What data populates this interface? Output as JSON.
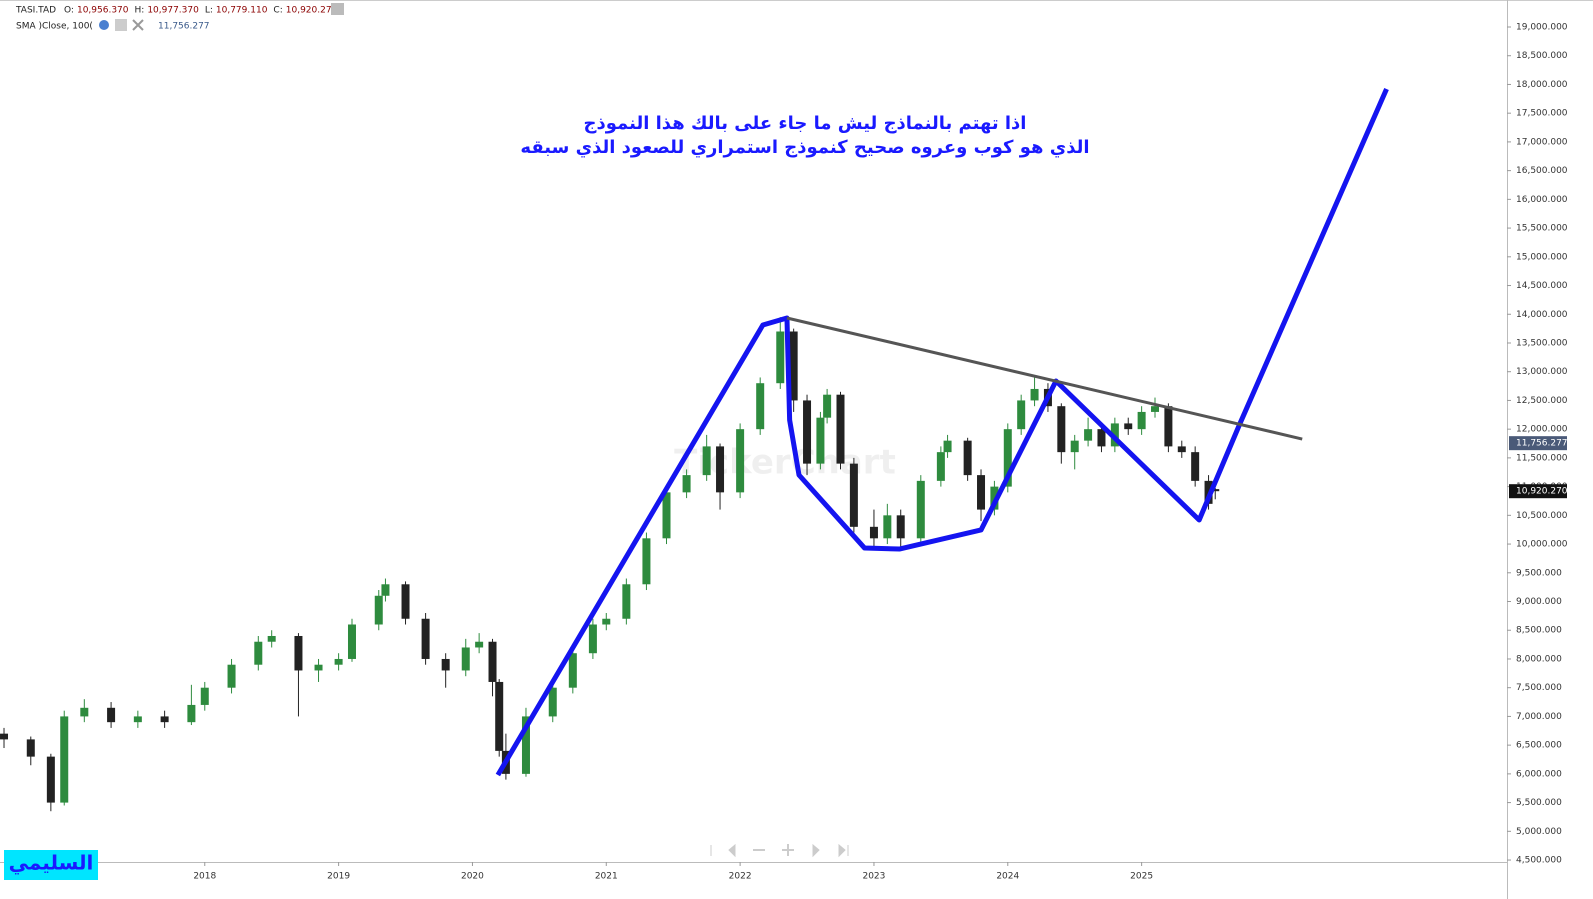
{
  "header": {
    "symbol": "TASI.TAD",
    "ohlc": [
      {
        "key": "O:",
        "value": "10,956.370"
      },
      {
        "key": "H:",
        "value": "10,977.370"
      },
      {
        "key": "L:",
        "value": "10,779.110"
      },
      {
        "key": "C:",
        "value": "10,920.270"
      }
    ],
    "indicator": "SMA  )Close, 100(",
    "indicator_value": "11,756.277"
  },
  "chart_data": {
    "type": "candlestick",
    "annotations": [
      "اذا تهتم بالنماذج ليش ما جاء على بالك هذا النموذج",
      "الذي هو كوب وعروه صحيح كنموذج استمراري  للصعود الذي سبقه"
    ],
    "watermark": "TickerChart",
    "signature": "السليمي",
    "up_color": "#2e8b3e",
    "down_color": "#222222",
    "x": [
      2016.5,
      2016.7,
      2016.85,
      2016.95,
      2017.1,
      2017.3,
      2017.5,
      2017.7,
      2017.9,
      2018.0,
      2018.2,
      2018.4,
      2018.5,
      2018.7,
      2018.85,
      2019.0,
      2019.1,
      2019.3,
      2019.35,
      2019.5,
      2019.65,
      2019.8,
      2019.95,
      2020.05,
      2020.15,
      2020.2,
      2020.25,
      2020.4,
      2020.6,
      2020.75,
      2020.9,
      2021.0,
      2021.15,
      2021.3,
      2021.45,
      2021.6,
      2021.75,
      2021.85,
      2022.0,
      2022.15,
      2022.3,
      2022.4,
      2022.5,
      2022.6,
      2022.65,
      2022.75,
      2022.85,
      2023.0,
      2023.1,
      2023.2,
      2023.35,
      2023.5,
      2023.55,
      2023.7,
      2023.8,
      2023.9,
      2024.0,
      2024.1,
      2024.2,
      2024.3,
      2024.4,
      2024.5,
      2024.6,
      2024.7,
      2024.8,
      2024.9,
      2025.0,
      2025.1,
      2025.2,
      2025.3,
      2025.4,
      2025.5,
      2025.55
    ],
    "open": [
      6700,
      6600,
      6300,
      5500,
      7000,
      7150,
      6900,
      7000,
      6900,
      7200,
      7500,
      7900,
      8300,
      8400,
      7800,
      7900,
      8000,
      8600,
      9100,
      9300,
      8700,
      8000,
      7800,
      8200,
      8300,
      7600,
      6400,
      6000,
      7000,
      7500,
      8100,
      8600,
      8700,
      9300,
      10100,
      10900,
      11200,
      11700,
      10900,
      12000,
      12800,
      13700,
      12500,
      11400,
      12200,
      12600,
      11400,
      10300,
      10100,
      10500,
      10100,
      11100,
      11600,
      11800,
      11200,
      10600,
      11000,
      12000,
      12500,
      12700,
      12400,
      11600,
      11800,
      12000,
      11700,
      12100,
      12000,
      12300,
      12400,
      11700,
      11600,
      11100,
      10956.37
    ],
    "high": [
      6800,
      6650,
      6350,
      7100,
      7300,
      7250,
      7100,
      7100,
      7550,
      7600,
      8000,
      8400,
      8500,
      8450,
      8000,
      8100,
      8700,
      9200,
      9400,
      9350,
      8800,
      8100,
      8350,
      8450,
      8350,
      7650,
      6700,
      7150,
      7600,
      8200,
      8700,
      8800,
      9400,
      10200,
      11000,
      11300,
      11900,
      11750,
      12100,
      12900,
      13950,
      13750,
      12600,
      12300,
      12700,
      12650,
      11500,
      10600,
      10700,
      10600,
      11200,
      11700,
      11900,
      11850,
      11300,
      11100,
      12100,
      12600,
      12900,
      12800,
      12450,
      11900,
      12200,
      12100,
      12200,
      12200,
      12400,
      12550,
      12450,
      11800,
      11700,
      11200,
      10977.37
    ],
    "low": [
      6450,
      6150,
      5350,
      5450,
      6900,
      6800,
      6800,
      6800,
      6850,
      7100,
      7400,
      7800,
      8200,
      7000,
      7600,
      7800,
      7950,
      8500,
      9000,
      8600,
      7900,
      7500,
      7700,
      8100,
      7350,
      6300,
      5900,
      5950,
      6900,
      7400,
      8000,
      8500,
      8600,
      9200,
      10000,
      10800,
      11100,
      10600,
      10800,
      11900,
      12700,
      12300,
      11200,
      11300,
      12100,
      11300,
      10200,
      9950,
      10000,
      9950,
      10000,
      11000,
      11500,
      11100,
      10400,
      10500,
      10900,
      11900,
      12400,
      12300,
      11400,
      11300,
      11700,
      11600,
      11600,
      11900,
      11900,
      12200,
      11600,
      11500,
      11000,
      10600,
      10779.11
    ],
    "close": [
      6600,
      6300,
      5500,
      7000,
      7150,
      6900,
      7000,
      6900,
      7200,
      7500,
      7900,
      8300,
      8400,
      7800,
      7900,
      8000,
      8600,
      9100,
      9300,
      8700,
      8000,
      7800,
      8200,
      8300,
      7600,
      6400,
      6000,
      7000,
      7500,
      8100,
      8600,
      8700,
      9300,
      10100,
      10900,
      11200,
      11700,
      10900,
      12000,
      12800,
      13700,
      12500,
      11400,
      12200,
      12600,
      11400,
      10300,
      10100,
      10500,
      10100,
      11100,
      11600,
      11800,
      11200,
      10600,
      11000,
      12000,
      12500,
      12700,
      12400,
      11600,
      11800,
      12000,
      11700,
      12100,
      12000,
      12300,
      12400,
      11700,
      11600,
      11100,
      10700,
      10920.27
    ],
    "drawings": [
      {
        "color": "#1414f0",
        "width": 5,
        "x": [
          2020.19,
          2022.17,
          2022.35,
          2022.37,
          2022.44,
          2022.93,
          2023.19,
          2023.8,
          2024.36,
          2025.43,
          2025.73,
          2026.83
        ],
        "y": [
          5980,
          13813,
          13935,
          12159,
          11202,
          9931,
          9914,
          10245,
          12838,
          10419,
          12072,
          17921
        ]
      },
      {
        "color": "#555555",
        "width": 3,
        "x": [
          2022.35,
          2026.2
        ],
        "y": [
          13935,
          11828
        ]
      }
    ],
    "price_labels": [
      {
        "value": 11756.277,
        "label": "11,756.277",
        "color": "#4a5a78"
      },
      {
        "value": 10920.27,
        "label": "10,920.270",
        "color": "#111111"
      }
    ],
    "xlim": [
      2016.47,
      2027.73
    ],
    "ylim": [
      4466,
      19470
    ],
    "xticks": [
      2018,
      2019,
      2020,
      2021,
      2022,
      2023,
      2024,
      2025
    ],
    "yticks": [
      {
        "value": 4500,
        "label": "4,500.000"
      },
      {
        "value": 5000,
        "label": "5,000.000"
      },
      {
        "value": 5500,
        "label": "5,500.000"
      },
      {
        "value": 6000,
        "label": "6,000.000"
      },
      {
        "value": 6500,
        "label": "6,500.000"
      },
      {
        "value": 7000,
        "label": "7,000.000"
      },
      {
        "value": 7500,
        "label": "7,500.000"
      },
      {
        "value": 8000,
        "label": "8,000.000"
      },
      {
        "value": 8500,
        "label": "8,500.000"
      },
      {
        "value": 9000,
        "label": "9,000.000"
      },
      {
        "value": 9500,
        "label": "9,500.000"
      },
      {
        "value": 10000,
        "label": "10,000.000"
      },
      {
        "value": 10500,
        "label": "10,500.000"
      },
      {
        "value": 11000,
        "label": "11,000.000"
      },
      {
        "value": 11500,
        "label": "11,500.000"
      },
      {
        "value": 12000,
        "label": "12,000.000"
      },
      {
        "value": 12500,
        "label": "12,500.000"
      },
      {
        "value": 13000,
        "label": "13,000.000"
      },
      {
        "value": 13500,
        "label": "13,500.000"
      },
      {
        "value": 14000,
        "label": "14,000.000"
      },
      {
        "value": 14500,
        "label": "14,500.000"
      },
      {
        "value": 15000,
        "label": "15,000.000"
      },
      {
        "value": 15500,
        "label": "15,500.000"
      },
      {
        "value": 16000,
        "label": "16,000.000"
      },
      {
        "value": 16500,
        "label": "16,500.000"
      },
      {
        "value": 17000,
        "label": "17,000.000"
      },
      {
        "value": 17500,
        "label": "17,500.000"
      },
      {
        "value": 18000,
        "label": "18,000.000"
      },
      {
        "value": 18500,
        "label": "18,500.000"
      },
      {
        "value": 19000,
        "label": "19,000.000"
      }
    ]
  }
}
